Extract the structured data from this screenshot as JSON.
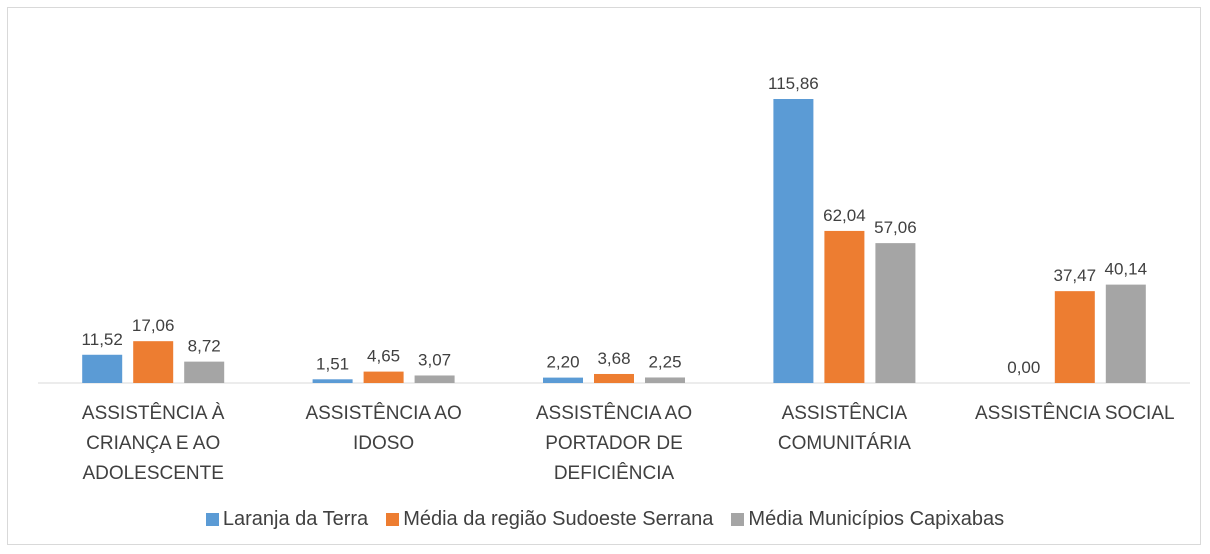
{
  "chart_data": {
    "type": "bar",
    "categories": [
      "ASSISTÊNCIA À CRIANÇA E AO ADOLESCENTE",
      "ASSISTÊNCIA AO IDOSO",
      "ASSISTÊNCIA AO PORTADOR DE DEFICIÊNCIA",
      "ASSISTÊNCIA COMUNITÁRIA",
      "ASSISTÊNCIA SOCIAL"
    ],
    "series": [
      {
        "name": "Laranja da Terra",
        "color": "#5b9bd5",
        "values": [
          11.52,
          1.51,
          2.2,
          115.86,
          0.0
        ],
        "value_labels": [
          "11,52",
          "1,51",
          "2,20",
          "115,86",
          "0,00"
        ]
      },
      {
        "name": "Média da região Sudoeste Serrana",
        "color": "#ed7d31",
        "values": [
          17.06,
          4.65,
          3.68,
          62.04,
          37.47
        ],
        "value_labels": [
          "17,06",
          "4,65",
          "3,68",
          "62,04",
          "37,47"
        ]
      },
      {
        "name": "Média Municípios Capixabas",
        "color": "#a5a5a5",
        "values": [
          8.72,
          3.07,
          2.25,
          57.06,
          40.14
        ],
        "value_labels": [
          "8,72",
          "3,07",
          "2,25",
          "57,06",
          "40,14"
        ]
      }
    ],
    "legend": "bottom"
  }
}
